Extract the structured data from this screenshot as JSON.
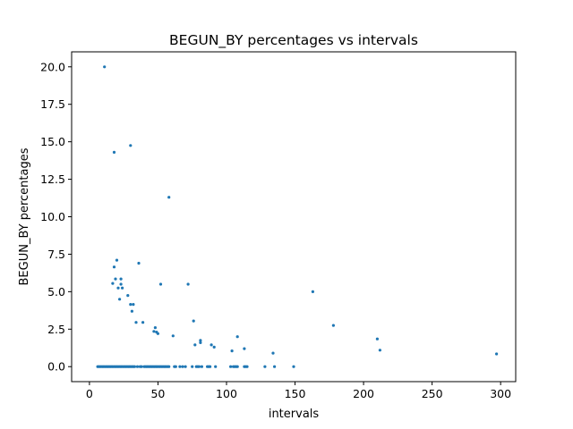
{
  "chart_data": {
    "type": "scatter",
    "title": "BEGUN_BY percentages vs intervals",
    "xlabel": "intervals",
    "ylabel": "BEGUN_BY percentages",
    "xlim": [
      -13,
      311
    ],
    "ylim": [
      -1.0,
      21.0
    ],
    "x_ticks": [
      0,
      50,
      100,
      150,
      200,
      250,
      300
    ],
    "x_tick_labels": [
      "0",
      "50",
      "100",
      "150",
      "200",
      "250",
      "300"
    ],
    "y_ticks": [
      0.0,
      2.5,
      5.0,
      7.5,
      10.0,
      12.5,
      15.0,
      17.5,
      20.0
    ],
    "y_tick_labels": [
      "0.0",
      "2.5",
      "5.0",
      "7.5",
      "10.0",
      "12.5",
      "15.0",
      "17.5",
      "20.0"
    ],
    "grid": false,
    "marker_color": "#1f77b4",
    "points": [
      [
        11,
        20.0
      ],
      [
        30,
        14.75
      ],
      [
        18,
        14.3
      ],
      [
        58,
        11.3
      ],
      [
        20,
        7.1
      ],
      [
        36,
        6.9
      ],
      [
        18,
        6.65
      ],
      [
        19,
        5.85
      ],
      [
        23,
        5.85
      ],
      [
        17,
        5.55
      ],
      [
        23,
        5.5
      ],
      [
        52,
        5.5
      ],
      [
        72,
        5.5
      ],
      [
        21,
        5.25
      ],
      [
        24,
        5.25
      ],
      [
        163,
        5.0
      ],
      [
        28,
        4.75
      ],
      [
        22,
        4.5
      ],
      [
        30,
        4.15
      ],
      [
        32,
        4.15
      ],
      [
        31,
        3.7
      ],
      [
        34,
        2.95
      ],
      [
        39,
        2.95
      ],
      [
        76,
        3.05
      ],
      [
        178,
        2.75
      ],
      [
        48,
        2.6
      ],
      [
        47,
        2.35
      ],
      [
        49,
        2.3
      ],
      [
        50,
        2.2
      ],
      [
        61,
        2.05
      ],
      [
        108,
        2.0
      ],
      [
        81,
        1.75
      ],
      [
        81,
        1.6
      ],
      [
        210,
        1.85
      ],
      [
        77,
        1.45
      ],
      [
        89,
        1.45
      ],
      [
        91,
        1.3
      ],
      [
        113,
        1.2
      ],
      [
        104,
        1.05
      ],
      [
        212,
        1.1
      ],
      [
        134,
        0.9
      ],
      [
        297,
        0.85
      ],
      [
        6,
        0.0
      ],
      [
        7,
        0.0
      ],
      [
        8,
        0.0
      ],
      [
        9,
        0.0
      ],
      [
        10,
        0.0
      ],
      [
        11,
        0.0
      ],
      [
        12,
        0.0
      ],
      [
        13,
        0.0
      ],
      [
        14,
        0.0
      ],
      [
        15,
        0.0
      ],
      [
        16,
        0.0
      ],
      [
        17,
        0.0
      ],
      [
        18,
        0.0
      ],
      [
        19,
        0.0
      ],
      [
        20,
        0.0
      ],
      [
        21,
        0.0
      ],
      [
        22,
        0.0
      ],
      [
        23,
        0.0
      ],
      [
        24,
        0.0
      ],
      [
        25,
        0.0
      ],
      [
        26,
        0.0
      ],
      [
        27,
        0.0
      ],
      [
        28,
        0.0
      ],
      [
        29,
        0.0
      ],
      [
        30,
        0.0
      ],
      [
        31,
        0.0
      ],
      [
        32,
        0.0
      ],
      [
        33,
        0.0
      ],
      [
        35,
        0.0
      ],
      [
        37,
        0.0
      ],
      [
        38,
        0.0
      ],
      [
        40,
        0.0
      ],
      [
        41,
        0.0
      ],
      [
        42,
        0.0
      ],
      [
        43,
        0.0
      ],
      [
        44,
        0.0
      ],
      [
        45,
        0.0
      ],
      [
        46,
        0.0
      ],
      [
        47,
        0.0
      ],
      [
        48,
        0.0
      ],
      [
        49,
        0.0
      ],
      [
        50,
        0.0
      ],
      [
        51,
        0.0
      ],
      [
        52,
        0.0
      ],
      [
        53,
        0.0
      ],
      [
        54,
        0.0
      ],
      [
        55,
        0.0
      ],
      [
        56,
        0.0
      ],
      [
        57,
        0.0
      ],
      [
        58,
        0.0
      ],
      [
        62,
        0.0
      ],
      [
        63,
        0.0
      ],
      [
        66,
        0.0
      ],
      [
        68,
        0.0
      ],
      [
        70,
        0.0
      ],
      [
        75,
        0.0
      ],
      [
        78,
        0.0
      ],
      [
        79,
        0.0
      ],
      [
        80,
        0.0
      ],
      [
        82,
        0.0
      ],
      [
        86,
        0.0
      ],
      [
        87,
        0.0
      ],
      [
        88,
        0.0
      ],
      [
        92,
        0.0
      ],
      [
        103,
        0.0
      ],
      [
        105,
        0.0
      ],
      [
        106,
        0.0
      ],
      [
        107,
        0.0
      ],
      [
        108,
        0.0
      ],
      [
        113,
        0.0
      ],
      [
        114,
        0.0
      ],
      [
        115,
        0.0
      ],
      [
        128,
        0.0
      ],
      [
        135,
        0.0
      ],
      [
        149,
        0.0
      ]
    ]
  }
}
